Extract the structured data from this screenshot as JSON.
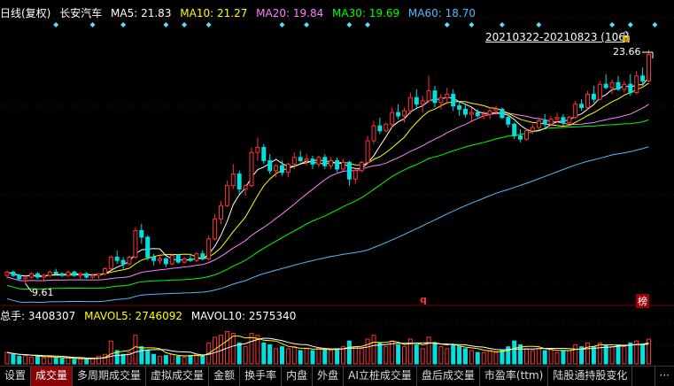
{
  "header": {
    "period_label": "日线(复权)",
    "stock_name": "长安汽车",
    "ma5": "MA5: 21.83",
    "ma10": "MA10: 21.27",
    "ma20": "MA20: 19.84",
    "ma30": "MA30: 19.69",
    "ma60": "MA60: 18.70"
  },
  "range_label": "20210322-20210823 (106)",
  "high_label": "23.66",
  "low_label": "9.61",
  "marker_q": "q",
  "marker_bang": "榜",
  "volume_header": {
    "total": "总手: 3408307",
    "mavol5": "MAVOL5: 2746092",
    "mavol10": "MAVOL10: 2575340"
  },
  "tabs": [
    "设置",
    "成交量",
    "多周期成交量",
    "虚拟成交量",
    "金额",
    "换手率",
    "内盘",
    "外盘",
    "AI立桩成交量",
    "盘后成交量",
    "市盈率(ttm)",
    "陆股通持股变化",
    "···"
  ],
  "active_tab": 1,
  "colors": {
    "up": "#ff3232",
    "down": "#00e0e0",
    "ma5": "#ffffff",
    "ma10": "#ffff00",
    "ma20": "#ff80ff",
    "ma30": "#00ff00",
    "ma60": "#54b8ff"
  },
  "chart_data": {
    "type": "candlestick",
    "price_range": [
      9.2,
      23.9
    ],
    "candles": [
      [
        10.1,
        10.4,
        9.9,
        10.3
      ],
      [
        10.3,
        10.4,
        10.0,
        10.1
      ],
      [
        10.1,
        10.2,
        9.8,
        9.9
      ],
      [
        9.9,
        10.1,
        9.61,
        10.0
      ],
      [
        10.0,
        10.3,
        9.9,
        10.2
      ],
      [
        10.2,
        10.3,
        9.9,
        10.0
      ],
      [
        10.0,
        10.2,
        9.8,
        10.1
      ],
      [
        10.1,
        10.4,
        10.0,
        10.3
      ],
      [
        10.3,
        10.5,
        10.1,
        10.2
      ],
      [
        10.2,
        10.3,
        10.0,
        10.1
      ],
      [
        10.1,
        10.4,
        10.0,
        10.3
      ],
      [
        10.3,
        10.4,
        10.0,
        10.1
      ],
      [
        10.1,
        10.3,
        9.9,
        10.2
      ],
      [
        10.2,
        10.3,
        9.9,
        10.0
      ],
      [
        10.0,
        10.2,
        9.9,
        10.1
      ],
      [
        10.1,
        10.2,
        9.9,
        10.2
      ],
      [
        10.2,
        10.6,
        10.1,
        10.5
      ],
      [
        10.5,
        11.3,
        10.4,
        11.2
      ],
      [
        11.2,
        11.6,
        10.8,
        11.0
      ],
      [
        11.0,
        11.2,
        10.5,
        10.8
      ],
      [
        10.8,
        11.3,
        10.7,
        11.2
      ],
      [
        11.2,
        13.0,
        11.1,
        12.8
      ],
      [
        12.8,
        13.2,
        12.0,
        12.4
      ],
      [
        12.4,
        12.5,
        11.0,
        11.2
      ],
      [
        11.2,
        11.4,
        10.7,
        11.0
      ],
      [
        11.0,
        11.3,
        10.8,
        11.1
      ],
      [
        11.1,
        11.2,
        10.6,
        10.8
      ],
      [
        10.8,
        11.4,
        10.7,
        11.3
      ],
      [
        11.3,
        11.4,
        10.8,
        10.9
      ],
      [
        10.9,
        11.2,
        10.8,
        11.1
      ],
      [
        11.1,
        11.4,
        10.9,
        11.0
      ],
      [
        11.0,
        11.5,
        10.9,
        11.4
      ],
      [
        11.4,
        11.6,
        11.0,
        11.1
      ],
      [
        11.1,
        12.5,
        11.0,
        12.3
      ],
      [
        12.3,
        13.8,
        12.2,
        13.5
      ],
      [
        13.5,
        14.6,
        13.2,
        14.3
      ],
      [
        14.3,
        15.8,
        14.2,
        15.5
      ],
      [
        15.5,
        16.8,
        15.3,
        16.2
      ],
      [
        16.2,
        16.4,
        15.0,
        15.3
      ],
      [
        15.3,
        15.6,
        14.9,
        15.5
      ],
      [
        15.5,
        17.8,
        15.4,
        17.5
      ],
      [
        17.5,
        18.4,
        17.0,
        17.8
      ],
      [
        17.8,
        18.0,
        16.8,
        17.0
      ],
      [
        17.0,
        17.4,
        16.2,
        16.4
      ],
      [
        16.4,
        16.8,
        16.0,
        16.7
      ],
      [
        16.7,
        17.0,
        16.1,
        16.3
      ],
      [
        16.3,
        16.9,
        16.0,
        16.8
      ],
      [
        16.8,
        17.5,
        16.5,
        17.2
      ],
      [
        17.2,
        17.6,
        16.9,
        17.0
      ],
      [
        17.0,
        17.4,
        16.7,
        17.1
      ],
      [
        17.1,
        17.3,
        16.5,
        16.8
      ],
      [
        16.8,
        17.3,
        16.6,
        17.2
      ],
      [
        17.2,
        17.4,
        16.5,
        16.7
      ],
      [
        16.7,
        17.2,
        16.5,
        17.0
      ],
      [
        17.0,
        17.2,
        16.3,
        16.5
      ],
      [
        16.5,
        17.1,
        16.4,
        16.9
      ],
      [
        16.9,
        17.0,
        15.5,
        15.9
      ],
      [
        15.9,
        16.5,
        15.6,
        16.4
      ],
      [
        16.4,
        17.0,
        16.3,
        16.9
      ],
      [
        16.9,
        18.5,
        16.8,
        18.2
      ],
      [
        18.2,
        19.4,
        18.0,
        19.1
      ],
      [
        19.1,
        19.6,
        18.6,
        18.8
      ],
      [
        18.8,
        19.3,
        18.7,
        19.2
      ],
      [
        19.2,
        20.2,
        19.0,
        19.9
      ],
      [
        19.9,
        20.4,
        19.5,
        19.7
      ],
      [
        19.7,
        20.2,
        19.3,
        20.0
      ],
      [
        20.0,
        21.1,
        19.8,
        20.8
      ],
      [
        20.8,
        21.3,
        20.1,
        20.4
      ],
      [
        20.4,
        20.9,
        19.9,
        20.6
      ],
      [
        20.6,
        22.1,
        20.5,
        21.2
      ],
      [
        21.2,
        21.5,
        20.2,
        20.5
      ],
      [
        20.5,
        21.0,
        20.1,
        20.8
      ],
      [
        20.8,
        21.4,
        20.4,
        21.0
      ],
      [
        21.0,
        21.3,
        20.0,
        20.3
      ],
      [
        20.3,
        20.6,
        19.7,
        20.1
      ],
      [
        20.1,
        20.4,
        19.6,
        19.8
      ],
      [
        19.8,
        20.2,
        19.4,
        19.9
      ],
      [
        19.9,
        20.1,
        19.6,
        19.7
      ],
      [
        19.7,
        20.0,
        19.5,
        19.8
      ],
      [
        19.8,
        20.2,
        19.5,
        20.0
      ],
      [
        20.0,
        20.3,
        19.8,
        20.1
      ],
      [
        20.1,
        20.2,
        19.5,
        19.6
      ],
      [
        19.6,
        19.8,
        19.0,
        19.2
      ],
      [
        19.2,
        19.3,
        18.3,
        18.5
      ],
      [
        18.5,
        18.9,
        18.1,
        18.3
      ],
      [
        18.3,
        18.9,
        18.2,
        18.8
      ],
      [
        18.8,
        19.2,
        18.6,
        19.0
      ],
      [
        19.0,
        19.6,
        18.9,
        19.4
      ],
      [
        19.4,
        19.8,
        19.0,
        19.2
      ],
      [
        19.2,
        19.7,
        19.1,
        19.5
      ],
      [
        19.5,
        19.9,
        19.3,
        19.6
      ],
      [
        19.6,
        19.8,
        19.1,
        19.3
      ],
      [
        19.3,
        19.7,
        19.2,
        19.6
      ],
      [
        19.6,
        20.6,
        19.5,
        20.4
      ],
      [
        20.4,
        20.7,
        20.0,
        20.2
      ],
      [
        20.2,
        21.2,
        20.1,
        21.0
      ],
      [
        21.0,
        21.5,
        20.5,
        20.7
      ],
      [
        20.7,
        21.8,
        20.6,
        21.6
      ],
      [
        21.6,
        22.2,
        21.3,
        21.4
      ],
      [
        21.4,
        21.9,
        21.0,
        21.7
      ],
      [
        21.7,
        22.1,
        21.2,
        21.3
      ],
      [
        21.3,
        21.8,
        21.1,
        21.6
      ],
      [
        21.6,
        22.2,
        20.9,
        21.1
      ],
      [
        21.1,
        22.4,
        21.0,
        22.1
      ],
      [
        22.1,
        22.6,
        21.5,
        21.8
      ],
      [
        21.8,
        23.66,
        21.7,
        23.4
      ]
    ],
    "volumes": [
      0.3,
      0.25,
      0.2,
      0.22,
      0.18,
      0.2,
      0.16,
      0.18,
      0.15,
      0.14,
      0.16,
      0.12,
      0.13,
      0.12,
      0.14,
      0.2,
      0.25,
      0.6,
      0.35,
      0.25,
      0.3,
      0.75,
      0.45,
      0.35,
      0.25,
      0.2,
      0.22,
      0.25,
      0.2,
      0.18,
      0.22,
      0.25,
      0.2,
      0.55,
      0.7,
      0.75,
      0.85,
      0.8,
      0.55,
      0.45,
      0.8,
      0.75,
      0.55,
      0.5,
      0.4,
      0.45,
      0.4,
      0.45,
      0.35,
      0.4,
      0.35,
      0.4,
      0.38,
      0.35,
      0.4,
      0.45,
      0.6,
      0.45,
      0.4,
      0.65,
      0.75,
      0.55,
      0.45,
      0.6,
      0.5,
      0.45,
      0.65,
      0.5,
      0.4,
      0.7,
      0.55,
      0.45,
      0.4,
      0.5,
      0.45,
      0.4,
      0.35,
      0.3,
      0.3,
      0.35,
      0.3,
      0.35,
      0.45,
      0.6,
      0.5,
      0.4,
      0.35,
      0.4,
      0.35,
      0.38,
      0.3,
      0.35,
      0.35,
      0.5,
      0.45,
      0.55,
      0.45,
      0.55,
      0.5,
      0.45,
      0.5,
      0.45,
      0.55,
      0.6,
      0.5,
      0.65
    ]
  }
}
